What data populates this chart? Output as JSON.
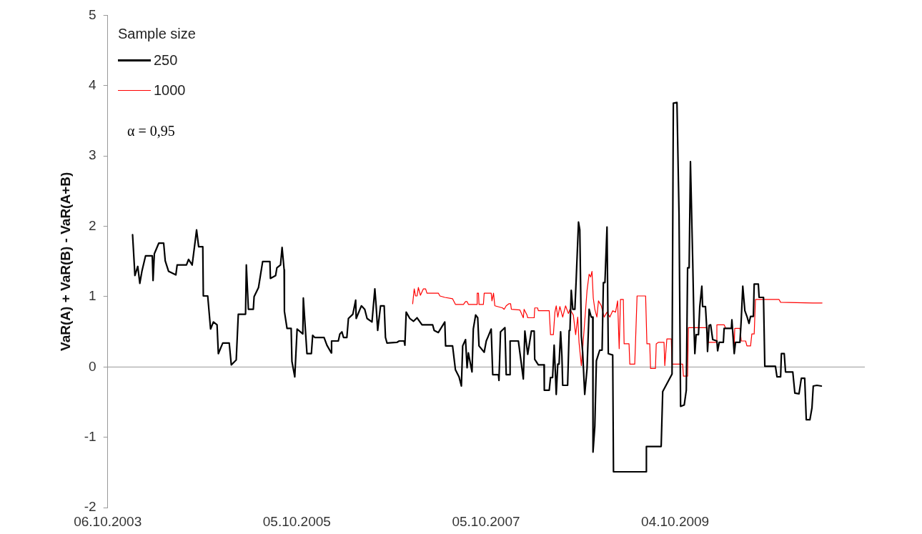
{
  "chart_data": {
    "type": "line",
    "ylabel": "VaR(A) + VaR(B) - VaR(A+B)",
    "legend_title": "Sample size",
    "legend": "top left",
    "annotations": [
      "α = 0,95"
    ],
    "xlim": [
      "2003-10-06",
      "2011-10-06"
    ],
    "xticks": [
      {
        "value": "2003-10-06",
        "label": "06.10.2003"
      },
      {
        "value": "2005-10-05",
        "label": "05.10.2005"
      },
      {
        "value": "2007-10-05",
        "label": "05.10.2007"
      },
      {
        "value": "2009-10-04",
        "label": "04.10.2009"
      }
    ],
    "ylim": [
      -2,
      5
    ],
    "yticks": [
      -2,
      -1,
      0,
      1,
      2,
      3,
      4,
      5
    ],
    "grid": false,
    "ref_lines": [
      {
        "axis": "y",
        "value": 0,
        "color": "#999999"
      }
    ],
    "marker": "none",
    "line_style": "solid",
    "series": [
      {
        "name": "250",
        "color": "#000000",
        "x": [
          "2004-01-10",
          "2004-01-13",
          "2004-01-19",
          "2004-01-30",
          "2004-02-07",
          "2004-02-15",
          "2004-02-29",
          "2004-03-26",
          "2004-03-29",
          "2004-04-03",
          "2004-04-20",
          "2004-05-09",
          "2004-05-15",
          "2004-05-28",
          "2004-06-25",
          "2004-06-30",
          "2004-08-05",
          "2004-08-13",
          "2004-08-27",
          "2004-09-07",
          "2004-09-13",
          "2004-09-21",
          "2004-10-07",
          "2004-10-09",
          "2004-10-26",
          "2004-11-06",
          "2004-11-17",
          "2004-12-01",
          "2004-12-06",
          "2004-12-23",
          "2005-01-17",
          "2005-01-25",
          "2005-02-13",
          "2005-02-21",
          "2005-03-21",
          "2005-03-24",
          "2005-04-01",
          "2005-04-20",
          "2005-04-23",
          "2005-05-10",
          "2005-05-26",
          "2005-06-23",
          "2005-06-25",
          "2005-07-15",
          "2005-07-20",
          "2005-08-03",
          "2005-08-09",
          "2005-08-17",
          "2005-08-18",
          "2005-08-28",
          "2005-09-13",
          "2005-09-16",
          "2005-09-27",
          "2005-10-06",
          "2005-10-28",
          "2005-10-30",
          "2005-11-08",
          "2005-11-13",
          "2005-11-30",
          "2005-12-05",
          "2005-12-13",
          "2006-01-18",
          "2006-01-29",
          "2006-02-15",
          "2006-02-16",
          "2006-03-14",
          "2006-03-20",
          "2006-03-28",
          "2006-04-03",
          "2006-04-16",
          "2006-04-22",
          "2006-05-09",
          "2006-05-20",
          "2006-05-22",
          "2006-06-11",
          "2006-06-24",
          "2006-07-03",
          "2006-07-22",
          "2006-08-02",
          "2006-08-07",
          "2006-08-13",
          "2006-08-24",
          "2006-09-07",
          "2006-09-12",
          "2006-09-18",
          "2006-10-26",
          "2006-11-04",
          "2006-11-23",
          "2006-11-26",
          "2006-12-01",
          "2006-12-15",
          "2006-12-29",
          "2007-01-12",
          "2007-01-31",
          "2007-03-13",
          "2007-03-19",
          "2007-04-04",
          "2007-04-29",
          "2007-05-02",
          "2007-05-29",
          "2007-06-09",
          "2007-06-23",
          "2007-07-02",
          "2007-07-07",
          "2007-07-18",
          "2007-07-24",
          "2007-07-29",
          "2007-08-12",
          "2007-08-17",
          "2007-08-26",
          "2007-09-03",
          "2007-09-08",
          "2007-09-28",
          "2007-10-06",
          "2007-10-14",
          "2007-10-25",
          "2007-10-31",
          "2007-11-22",
          "2007-11-24",
          "2007-11-30",
          "2007-12-17",
          "2007-12-22",
          "2008-01-05",
          "2008-01-06",
          "2008-02-07",
          "2008-02-26",
          "2008-03-03",
          "2008-03-14",
          "2008-03-28",
          "2008-04-08",
          "2008-04-10",
          "2008-04-24",
          "2008-05-16",
          "2008-05-17",
          "2008-06-05",
          "2008-06-10",
          "2008-06-18",
          "2008-06-24",
          "2008-06-29",
          "2008-07-02",
          "2008-07-08",
          "2008-07-13",
          "2008-07-19",
          "2008-07-24",
          "2008-07-27",
          "2008-08-15",
          "2008-08-21",
          "2008-08-24",
          "2008-08-29",
          "2008-09-04",
          "2008-09-12",
          "2008-09-17",
          "2008-09-26",
          "2008-10-01",
          "2008-10-07",
          "2008-10-12",
          "2008-10-20",
          "2008-10-29",
          "2008-11-06",
          "2008-11-14",
          "2008-11-20",
          "2008-11-21",
          "2008-11-28",
          "2008-12-04",
          "2008-12-17",
          "2008-12-26",
          "2008-12-31",
          "2009-01-06",
          "2009-01-14",
          "2009-01-19",
          "2009-02-05",
          "2009-02-08",
          "2009-06-14",
          "2009-06-15",
          "2009-08-11",
          "2009-08-17",
          "2009-09-22",
          "2009-09-27",
          "2009-10-11",
          "2009-10-19",
          "2009-10-25",
          "2009-11-08",
          "2009-11-16",
          "2009-11-21",
          "2009-11-27",
          "2009-12-02",
          "2009-12-11",
          "2009-12-16",
          "2009-12-19",
          "2009-12-24",
          "2010-01-02",
          "2010-01-07",
          "2010-01-15",
          "2010-01-18",
          "2010-01-29",
          "2010-02-04",
          "2010-02-06",
          "2010-02-12",
          "2010-02-18",
          "2010-02-26",
          "2010-03-14",
          "2010-03-17",
          "2010-03-23",
          "2010-04-08",
          "2010-04-11",
          "2010-05-09",
          "2010-05-11",
          "2010-05-20",
          "2010-05-25",
          "2010-06-11",
          "2010-06-16",
          "2010-06-22",
          "2010-06-30",
          "2010-07-08",
          "2010-07-16",
          "2010-07-22",
          "2010-08-02",
          "2010-08-05",
          "2010-08-21",
          "2010-08-24",
          "2010-09-10",
          "2010-09-15",
          "2010-10-26",
          "2010-11-01",
          "2010-11-15",
          "2010-11-18",
          "2010-11-29",
          "2010-12-04",
          "2011-01-01",
          "2011-01-09",
          "2011-01-25",
          "2011-02-03",
          "2011-02-16",
          "2011-02-22",
          "2011-03-08",
          "2011-03-16",
          "2011-03-21",
          "2011-04-04",
          "2011-04-21"
        ],
        "values": [
          1.88,
          1.69,
          1.3,
          1.43,
          1.19,
          1.36,
          1.58,
          1.58,
          1.23,
          1.61,
          1.76,
          1.76,
          1.51,
          1.36,
          1.31,
          1.45,
          1.45,
          1.53,
          1.45,
          1.77,
          1.95,
          1.71,
          1.71,
          1.01,
          1.01,
          0.54,
          0.64,
          0.6,
          0.19,
          0.34,
          0.34,
          0.03,
          0.1,
          0.75,
          0.75,
          1.45,
          0.82,
          0.82,
          1.0,
          1.13,
          1.5,
          1.5,
          1.26,
          1.3,
          1.41,
          1.45,
          1.7,
          1.38,
          0.79,
          0.55,
          0.55,
          0.08,
          -0.14,
          0.54,
          0.47,
          0.98,
          0.47,
          0.19,
          0.19,
          0.45,
          0.42,
          0.42,
          0.31,
          0.2,
          0.37,
          0.37,
          0.47,
          0.5,
          0.42,
          0.42,
          0.69,
          0.75,
          0.95,
          0.69,
          0.87,
          0.82,
          0.69,
          0.64,
          1.11,
          0.87,
          0.52,
          0.87,
          0.87,
          0.42,
          0.34,
          0.35,
          0.37,
          0.37,
          0.31,
          0.78,
          0.69,
          0.65,
          0.7,
          0.6,
          0.6,
          0.52,
          0.49,
          0.64,
          0.3,
          0.3,
          -0.04,
          -0.14,
          -0.27,
          0.3,
          0.39,
          -0.01,
          0.2,
          -0.07,
          0.54,
          0.74,
          0.7,
          0.3,
          0.21,
          0.37,
          0.44,
          0.54,
          -0.11,
          -0.11,
          -0.19,
          0.5,
          0.56,
          -0.11,
          -0.11,
          0.37,
          0.37,
          -0.17,
          0.51,
          0.18,
          0.51,
          0.51,
          0.11,
          0.03,
          0.03,
          -0.33,
          -0.33,
          -0.15,
          -0.15,
          0.31,
          -0.1,
          -0.39,
          0.04,
          0.04,
          0.5,
          0.15,
          -0.26,
          -0.26,
          0.52,
          0.52,
          1.09,
          0.82,
          0.82,
          1.24,
          2.06,
          1.95,
          0.44,
          0.21,
          -0.39,
          -0.02,
          0.82,
          0.71,
          0.71,
          -1.21,
          -0.84,
          0.09,
          0.24,
          0.24,
          1.2,
          1.2,
          1.99,
          0.19,
          0.17,
          -1.49,
          -1.49,
          -1.13,
          -1.13,
          -0.35,
          -0.1,
          3.75,
          3.76,
          2.16,
          -0.56,
          -0.54,
          -0.33,
          1.41,
          1.41,
          2.92,
          1.47,
          0.54,
          0.19,
          0.46,
          0.46,
          0.86,
          1.15,
          0.86,
          0.86,
          0.48,
          0.22,
          0.59,
          0.6,
          0.39,
          0.37,
          0.23,
          0.35,
          0.35,
          0.55,
          0.55,
          0.67,
          0.19,
          0.35,
          0.35,
          0.67,
          1.15,
          0.8,
          0.72,
          0.62,
          0.72,
          0.72,
          1.18,
          1.18,
          0.99,
          0.99,
          0.01,
          0.01,
          -0.14,
          -0.14,
          0.19,
          0.19,
          -0.07,
          -0.07,
          -0.37,
          -0.38,
          -0.16,
          -0.16,
          -0.75,
          -0.75,
          -0.58,
          -0.27,
          -0.26,
          -0.27
        ]
      },
      {
        "name": "1000",
        "color": "#ff0000",
        "x": [
          "2006-12-26",
          "2007-01-01",
          "2007-01-06",
          "2007-01-12",
          "2007-01-17",
          "2007-01-25",
          "2007-02-05",
          "2007-02-14",
          "2007-02-19",
          "2007-04-04",
          "2007-04-10",
          "2007-04-29",
          "2007-05-29",
          "2007-06-09",
          "2007-07-10",
          "2007-07-18",
          "2007-07-24",
          "2007-07-29",
          "2007-08-31",
          "2007-09-01",
          "2007-09-06",
          "2007-09-08",
          "2007-09-25",
          "2007-09-28",
          "2007-10-25",
          "2007-10-28",
          "2007-11-03",
          "2007-11-08",
          "2007-12-08",
          "2007-12-14",
          "2007-12-22",
          "2008-01-02",
          "2008-01-08",
          "2008-01-11",
          "2008-02-13",
          "2008-02-26",
          "2008-02-29",
          "2008-03-11",
          "2008-03-14",
          "2008-04-08",
          "2008-04-10",
          "2008-04-21",
          "2008-04-24",
          "2008-06-05",
          "2008-06-10",
          "2008-06-21",
          "2008-06-27",
          "2008-07-02",
          "2008-07-08",
          "2008-07-16",
          "2008-07-27",
          "2008-08-07",
          "2008-08-18",
          "2008-08-24",
          "2008-09-06",
          "2008-09-15",
          "2008-09-23",
          "2008-09-28",
          "2008-10-07",
          "2008-10-18",
          "2008-10-29",
          "2008-11-06",
          "2008-11-12",
          "2008-11-17",
          "2008-11-22",
          "2008-11-28",
          "2008-12-06",
          "2008-12-12",
          "2008-12-23",
          "2009-01-03",
          "2009-01-14",
          "2009-01-25",
          "2009-02-05",
          "2009-02-16",
          "2009-02-24",
          "2009-03-02",
          "2009-03-07",
          "2009-03-18",
          "2009-03-21",
          "2009-04-09",
          "2009-04-12",
          "2009-05-01",
          "2009-05-04",
          "2009-05-10",
          "2009-06-12",
          "2009-06-17",
          "2009-06-28",
          "2009-07-01",
          "2009-07-20",
          "2009-07-23",
          "2009-07-31",
          "2009-08-22",
          "2009-08-25",
          "2009-09-02",
          "2009-09-19",
          "2009-09-22",
          "2009-11-02",
          "2009-11-05",
          "2009-11-21",
          "2009-11-24",
          "2010-02-04",
          "2010-02-05",
          "2010-03-12",
          "2010-03-14",
          "2010-04-11",
          "2010-04-17",
          "2010-05-14",
          "2010-05-20",
          "2010-05-22",
          "2010-06-11",
          "2010-06-16",
          "2010-07-03",
          "2010-07-08",
          "2010-07-22",
          "2010-07-27",
          "2010-08-05",
          "2010-08-10",
          "2010-11-09",
          "2010-11-15",
          "2011-03-19",
          "2011-04-24"
        ],
        "values": [
          0.9,
          1.11,
          1.01,
          1.01,
          1.13,
          1.02,
          1.11,
          1.11,
          1.05,
          1.05,
          1.01,
          0.99,
          0.97,
          0.89,
          0.89,
          0.93,
          0.93,
          0.89,
          0.89,
          1.05,
          1.05,
          0.89,
          0.89,
          1.05,
          1.05,
          0.94,
          1.05,
          0.87,
          0.84,
          0.82,
          0.87,
          0.9,
          0.9,
          0.82,
          0.81,
          0.7,
          0.82,
          0.74,
          0.7,
          0.7,
          0.84,
          0.84,
          0.8,
          0.8,
          0.46,
          0.46,
          0.78,
          0.87,
          0.71,
          0.86,
          0.71,
          0.87,
          0.76,
          0.82,
          0.74,
          0.46,
          0.71,
          0.35,
          0.02,
          0.55,
          1.09,
          1.32,
          1.28,
          1.36,
          0.98,
          0.82,
          0.71,
          0.94,
          0.87,
          0.71,
          0.78,
          0.71,
          0.8,
          0.78,
          0.94,
          0.26,
          0.96,
          0.96,
          0.33,
          0.33,
          0.04,
          0.04,
          0.35,
          1.01,
          1.01,
          0.33,
          0.33,
          -0.02,
          -0.02,
          0.33,
          0.35,
          0.35,
          0.02,
          0.4,
          0.4,
          0.04,
          0.04,
          -0.13,
          -0.13,
          0.56,
          0.56,
          0.35,
          0.35,
          0.6,
          0.6,
          0.55,
          0.55,
          0.3,
          0.55,
          0.55,
          0.37,
          0.37,
          0.3,
          0.3,
          0.47,
          0.47,
          0.96,
          0.96,
          0.92,
          0.91,
          0.91
        ]
      }
    ]
  }
}
